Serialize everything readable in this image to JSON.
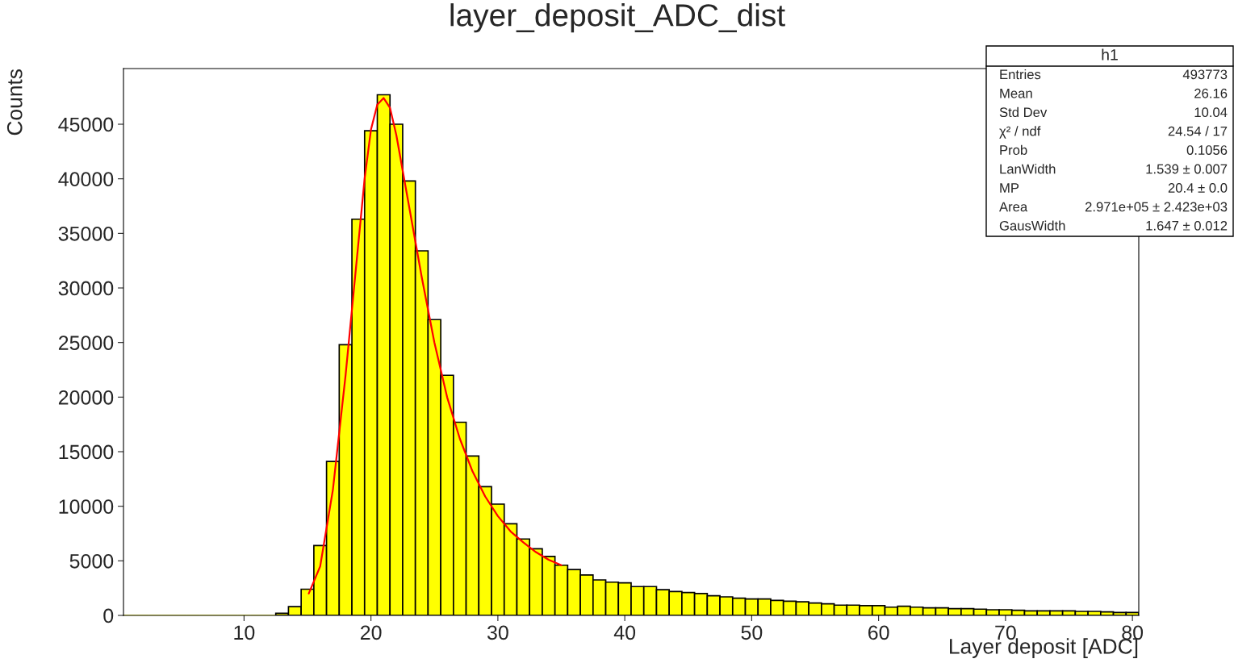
{
  "chart_data": {
    "type": "histogram",
    "title": "layer_deposit_ADC_dist",
    "xlabel": "Layer deposit [ADC]",
    "ylabel": "Counts",
    "color": "#ffff00",
    "bins": [
      0.5,
      1.5,
      2.5,
      3.5,
      4.5,
      5.5,
      6.5,
      7.5,
      8.5,
      9.5,
      10.5,
      11.5,
      12.5,
      13.5,
      14.5,
      15.5,
      16.5,
      17.5,
      18.5,
      19.5,
      20.5,
      21.5,
      22.5,
      23.5,
      24.5,
      25.5,
      26.5,
      27.5,
      28.5,
      29.5,
      30.5,
      31.5,
      32.5,
      33.5,
      34.5,
      35.5,
      36.5,
      37.5,
      38.5,
      39.5,
      40.5,
      41.5,
      42.5,
      43.5,
      44.5,
      45.5,
      46.5,
      47.5,
      48.5,
      49.5,
      50.5,
      51.5,
      52.5,
      53.5,
      54.5,
      55.5,
      56.5,
      57.5,
      58.5,
      59.5,
      60.5,
      61.5,
      62.5,
      63.5,
      64.5,
      65.5,
      66.5,
      67.5,
      68.5,
      69.5,
      70.5,
      71.5,
      72.5,
      73.5,
      74.5,
      75.5,
      76.5,
      77.5,
      78.5,
      79.5,
      80.5
    ],
    "values": [
      0,
      0,
      0,
      0,
      0,
      0,
      0,
      0,
      0,
      0,
      0,
      0,
      200,
      800,
      2400,
      6400,
      14100,
      24800,
      36300,
      44400,
      47700,
      45000,
      39800,
      33400,
      27100,
      22000,
      17700,
      14600,
      11800,
      10200,
      8400,
      7000,
      6100,
      5400,
      4600,
      4200,
      3700,
      3250,
      3050,
      2980,
      2640,
      2640,
      2360,
      2190,
      2100,
      2000,
      1800,
      1700,
      1580,
      1500,
      1500,
      1380,
      1300,
      1250,
      1130,
      1060,
      940,
      940,
      890,
      890,
      760,
      840,
      760,
      690,
      690,
      620,
      620,
      570,
      520,
      520,
      470,
      420,
      420,
      420,
      420,
      370,
      370,
      320,
      270,
      270
    ],
    "series": [
      {
        "type": "line",
        "color": "#ff0000",
        "x": [
          15.1,
          16,
          17,
          18,
          19,
          19.5,
          20,
          20.5,
          21,
          21.5,
          22,
          23,
          24,
          25,
          26,
          27,
          28,
          29,
          30,
          31,
          32,
          33,
          34,
          35
        ],
        "values": [
          2000,
          4500,
          11500,
          22000,
          34000,
          40000,
          44500,
          46800,
          47400,
          46500,
          44000,
          37500,
          31000,
          25000,
          20000,
          16200,
          13200,
          10900,
          9100,
          7700,
          6700,
          5800,
          5100,
          4600
        ]
      }
    ],
    "xlim": [
      0.5,
      80.5
    ],
    "xticks": [
      10,
      20,
      30,
      40,
      50,
      60,
      70,
      80
    ],
    "ylim": [
      0,
      50100
    ],
    "yticks": [
      0,
      5000,
      10000,
      15000,
      20000,
      25000,
      30000,
      35000,
      40000,
      45000
    ],
    "annotations": [
      "h1",
      "Entries",
      "493773",
      "Mean",
      "26.16",
      "Std Dev",
      "10.04",
      "χ² / ndf",
      "24.54 / 17",
      "Prob",
      "0.1056",
      "LanWidth",
      "1.539 ± 0.007",
      "MP",
      "20.4 ± 0.0",
      "Area",
      "2.971e+05 ± 2.423e+03",
      "GausWidth",
      "1.647 ± 0.012"
    ]
  }
}
